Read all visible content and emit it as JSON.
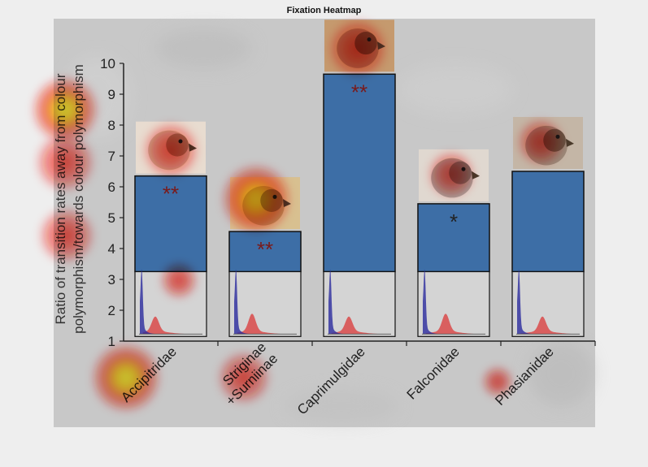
{
  "figure_title": "Fixation Heatmap",
  "colors": {
    "bar_fill": "#3d6ea6",
    "bar_outline": "#111111",
    "hist_blue": "#2a2a9e",
    "hist_red": "#d94a4a",
    "heat_hot": "#ffff30",
    "heat_mid": "#ff2a1a",
    "panel_bg": "#c8c8c8",
    "figure_bg": "#eeeeee"
  },
  "chart_data": {
    "type": "bar",
    "title": "",
    "ylabel_lines": [
      "Ratio of transition rates away from colour",
      "polymorphism/towards colour polymorphism"
    ],
    "xlabel": "",
    "ylim": [
      1,
      10
    ],
    "yticks": [
      "1",
      "2",
      "3",
      "4",
      "5",
      "6",
      "7",
      "8",
      "9",
      "10"
    ],
    "categories": [
      "Accipitridae",
      "Striginae\n+Surniinae",
      "Caprimulgidae",
      "Falconidae",
      "Phasianidae"
    ],
    "values": [
      6.35,
      4.55,
      9.65,
      5.45,
      6.5
    ],
    "significance": [
      "**",
      "**",
      "**",
      "*",
      ""
    ],
    "inset_histograms": true,
    "bird_photos": true,
    "heatmap_overlay": true,
    "grid": false,
    "legend": "none"
  }
}
